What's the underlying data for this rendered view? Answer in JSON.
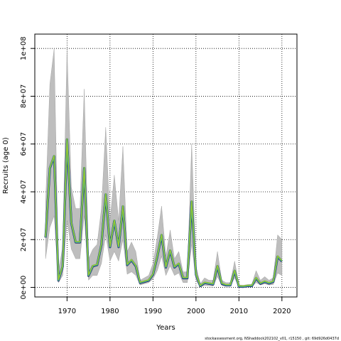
{
  "chart_data": {
    "type": "line",
    "title": "",
    "xlabel": "Years",
    "ylabel": "Recruits (age 0)",
    "xlim": [
      1962.5,
      2023.5
    ],
    "ylim": [
      -4000000,
      106000000
    ],
    "xticks": [
      1970,
      1980,
      1990,
      2000,
      2010,
      2020
    ],
    "xtick_labels": [
      "1970",
      "1980",
      "1990",
      "2000",
      "2010",
      "2020"
    ],
    "yticks": [
      0,
      20000000,
      40000000,
      60000000,
      80000000,
      100000000
    ],
    "ytick_labels": [
      "0e+00",
      "2e+07",
      "4e+07",
      "6e+07",
      "8e+07",
      "1e+08"
    ],
    "grid": true,
    "footer": "stockassessment.org, NShaddock202102_v01, r15150 , git: 69d926d0437d",
    "x": [
      1965,
      1966,
      1967,
      1968,
      1969,
      1970,
      1971,
      1972,
      1973,
      1974,
      1975,
      1976,
      1977,
      1978,
      1979,
      1980,
      1981,
      1982,
      1983,
      1984,
      1985,
      1986,
      1987,
      1988,
      1989,
      1990,
      1991,
      1992,
      1993,
      1994,
      1995,
      1996,
      1997,
      1998,
      1999,
      2000,
      2001,
      2002,
      2003,
      2004,
      2005,
      2006,
      2007,
      2008,
      2009,
      2010,
      2011,
      2012,
      2013,
      2014,
      2015,
      2016,
      2017,
      2018,
      2019,
      2020
    ],
    "series": [
      {
        "kind": "ci_band",
        "color": "#bebebe",
        "lower": [
          12000000,
          25000000,
          30000000,
          2000000,
          5000000,
          28000000,
          16000000,
          12000000,
          12000000,
          30000000,
          3000000,
          5000000,
          5000000,
          10000000,
          22000000,
          11000000,
          15000000,
          11000000,
          20000000,
          5500000,
          6500000,
          5000000,
          1000000,
          1500000,
          2000000,
          3500000,
          7000000,
          13000000,
          5000000,
          9000000,
          5000000,
          6000000,
          2000000,
          2000000,
          18000000,
          3000000,
          200000,
          800000,
          700000,
          600000,
          4500000,
          800000,
          500000,
          500000,
          4000000,
          200000,
          200000,
          300000,
          400000,
          2000000,
          1000000,
          1500000,
          1000000,
          1200000,
          6000000,
          5000000
        ],
        "upper": [
          35000000,
          85000000,
          100000000,
          7000000,
          17000000,
          100000000,
          42000000,
          33000000,
          33000000,
          83000000,
          12000000,
          16000000,
          18000000,
          33000000,
          67000000,
          28000000,
          47000000,
          28000000,
          59000000,
          15000000,
          19000000,
          15000000,
          3000000,
          4000000,
          5000000,
          10000000,
          21000000,
          34000000,
          13000000,
          24000000,
          12000000,
          15000000,
          6500000,
          6500000,
          60000000,
          9000000,
          1500000,
          4000000,
          3000000,
          3000000,
          15000000,
          3000000,
          2000000,
          2000000,
          11000000,
          1000000,
          900000,
          1200000,
          1300000,
          7000000,
          3000000,
          4500000,
          3000000,
          4000000,
          22000000,
          20000000
        ]
      },
      {
        "name": "",
        "kind": "line",
        "colors": [
          "#1c1c4a",
          "#3a8fd0",
          "#3aaa6a",
          "#9ac832"
        ],
        "values": [
          21000000,
          50000000,
          55000000,
          3000000,
          9000000,
          62000000,
          27000000,
          19000000,
          19000000,
          50000000,
          5000000,
          9000000,
          9500000,
          18000000,
          39000000,
          17000000,
          28000000,
          17000000,
          34000000,
          9500000,
          11500000,
          9000000,
          2000000,
          2500000,
          3000000,
          5500000,
          13000000,
          22000000,
          8500000,
          15500000,
          8500000,
          10000000,
          4000000,
          4000000,
          36000000,
          5500000,
          700000,
          2000000,
          1700000,
          1400000,
          9000000,
          1700000,
          1000000,
          1000000,
          7000000,
          500000,
          400000,
          700000,
          700000,
          4000000,
          1700000,
          2500000,
          1800000,
          2500000,
          13000000,
          11000000
        ]
      }
    ]
  }
}
